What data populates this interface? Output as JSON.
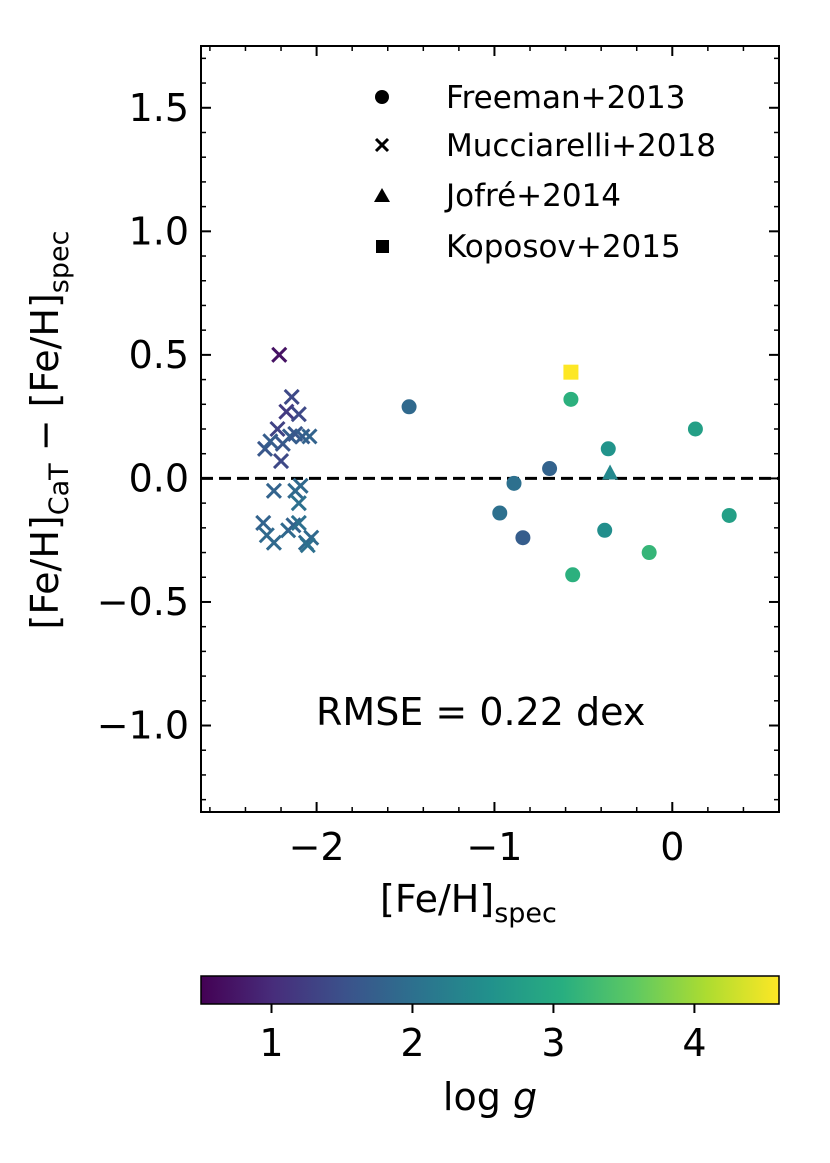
{
  "chart_data": {
    "type": "scatter",
    "title": "",
    "xlabel": {
      "main": "[Fe/H]",
      "sub": "spec"
    },
    "ylabel": {
      "part1": "[Fe/H]",
      "sub1": "CaT",
      "minus": " − ",
      "part2": "[Fe/H]",
      "sub2": "spec"
    },
    "xlim": [
      -2.65,
      0.6
    ],
    "ylim": [
      -1.35,
      1.75
    ],
    "xticks": [
      -2,
      -1,
      0
    ],
    "xtick_labels": [
      "−2",
      "−1",
      "0"
    ],
    "yticks": [
      -1.0,
      -0.5,
      0.0,
      0.5,
      1.0,
      1.5
    ],
    "ytick_labels": [
      "−1.0",
      "−0.5",
      "0.0",
      "0.5",
      "1.0",
      "1.5"
    ],
    "reference_line": {
      "y": 0.0,
      "style": "dashed"
    },
    "annotation": "RMSE = 0.22 dex",
    "legend": {
      "location": "top-right",
      "entries": [
        {
          "marker": "circle",
          "label": "Freeman+2013"
        },
        {
          "marker": "x",
          "label": "Mucciarelli+2018"
        },
        {
          "marker": "triangle",
          "label": "Jofré+2014"
        },
        {
          "marker": "square",
          "label": "Koposov+2015"
        }
      ]
    },
    "colorbar": {
      "label_main": "log ",
      "label_var": "g",
      "range": [
        0.5,
        4.6
      ],
      "ticks": [
        1,
        2,
        3,
        4
      ],
      "tick_labels": [
        "1",
        "2",
        "3",
        "4"
      ],
      "colormap": "viridis"
    },
    "series": [
      {
        "name": "Freeman+2013",
        "marker": "circle",
        "points": [
          {
            "x": -1.48,
            "y": 0.29,
            "logg": 1.9
          },
          {
            "x": -0.97,
            "y": -0.14,
            "logg": 2.0
          },
          {
            "x": -0.89,
            "y": -0.02,
            "logg": 2.0
          },
          {
            "x": -0.84,
            "y": -0.24,
            "logg": 1.7
          },
          {
            "x": -0.69,
            "y": 0.04,
            "logg": 1.8
          },
          {
            "x": -0.57,
            "y": 0.32,
            "logg": 3.1
          },
          {
            "x": -0.56,
            "y": -0.39,
            "logg": 3.1
          },
          {
            "x": -0.38,
            "y": -0.21,
            "logg": 2.5
          },
          {
            "x": -0.36,
            "y": 0.12,
            "logg": 2.6
          },
          {
            "x": -0.13,
            "y": -0.3,
            "logg": 3.2
          },
          {
            "x": 0.13,
            "y": 0.2,
            "logg": 2.8
          },
          {
            "x": 0.32,
            "y": -0.15,
            "logg": 2.8
          }
        ]
      },
      {
        "name": "Mucciarelli+2018",
        "marker": "x",
        "points": [
          {
            "x": -2.21,
            "y": 0.5,
            "logg": 0.7
          },
          {
            "x": -2.14,
            "y": 0.33,
            "logg": 1.4
          },
          {
            "x": -2.17,
            "y": 0.27,
            "logg": 1.2
          },
          {
            "x": -2.1,
            "y": 0.26,
            "logg": 1.4
          },
          {
            "x": -2.22,
            "y": 0.2,
            "logg": 1.3
          },
          {
            "x": -2.2,
            "y": 0.07,
            "logg": 1.4
          },
          {
            "x": -2.29,
            "y": 0.12,
            "logg": 1.6
          },
          {
            "x": -2.26,
            "y": 0.15,
            "logg": 1.7
          },
          {
            "x": -2.19,
            "y": 0.14,
            "logg": 1.6
          },
          {
            "x": -2.15,
            "y": 0.17,
            "logg": 1.7
          },
          {
            "x": -2.12,
            "y": 0.18,
            "logg": 1.6
          },
          {
            "x": -2.08,
            "y": 0.17,
            "logg": 1.7
          },
          {
            "x": -2.04,
            "y": 0.17,
            "logg": 1.8
          },
          {
            "x": -2.24,
            "y": -0.05,
            "logg": 1.8
          },
          {
            "x": -2.12,
            "y": -0.05,
            "logg": 1.9
          },
          {
            "x": -2.09,
            "y": -0.03,
            "logg": 1.9
          },
          {
            "x": -2.1,
            "y": -0.1,
            "logg": 2.0
          },
          {
            "x": -2.3,
            "y": -0.18,
            "logg": 1.8
          },
          {
            "x": -2.28,
            "y": -0.23,
            "logg": 1.9
          },
          {
            "x": -2.24,
            "y": -0.26,
            "logg": 1.9
          },
          {
            "x": -2.16,
            "y": -0.21,
            "logg": 1.9
          },
          {
            "x": -2.13,
            "y": -0.19,
            "logg": 1.8
          },
          {
            "x": -2.1,
            "y": -0.18,
            "logg": 2.0
          },
          {
            "x": -2.06,
            "y": -0.26,
            "logg": 1.9
          },
          {
            "x": -2.03,
            "y": -0.24,
            "logg": 1.9
          },
          {
            "x": -2.05,
            "y": -0.27,
            "logg": 2.0
          }
        ]
      },
      {
        "name": "Jofré+2014",
        "marker": "triangle",
        "points": [
          {
            "x": -0.35,
            "y": 0.02,
            "logg": 2.4
          }
        ]
      },
      {
        "name": "Koposov+2015",
        "marker": "square",
        "points": [
          {
            "x": -0.57,
            "y": 0.43,
            "logg": 4.6
          }
        ]
      }
    ]
  }
}
